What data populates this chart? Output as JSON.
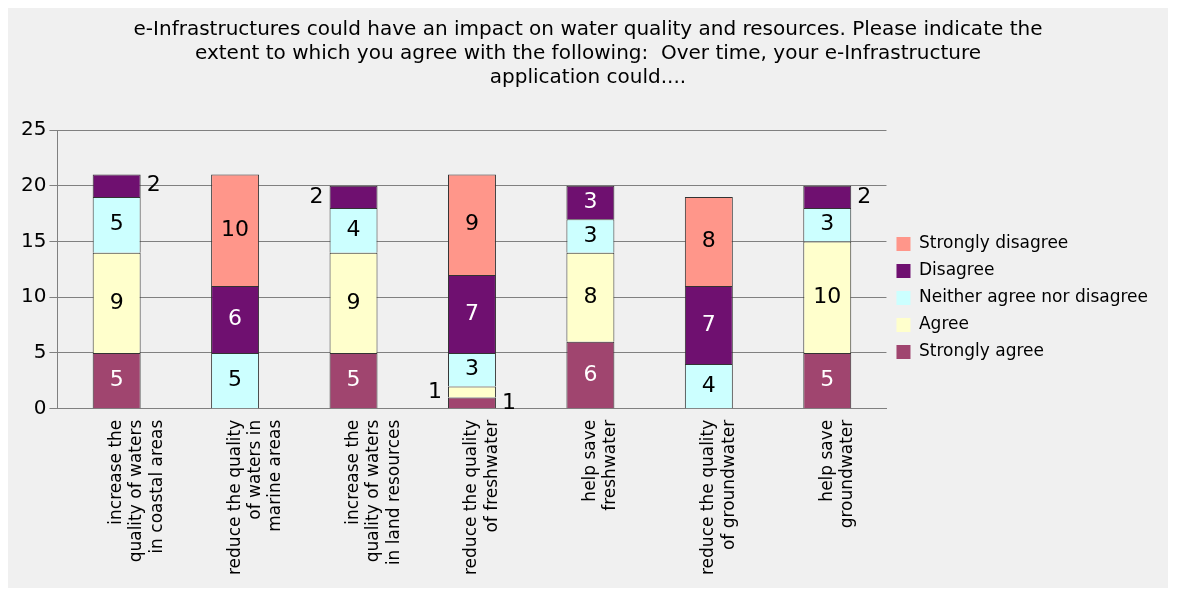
{
  "chart_data": {
    "type": "bar",
    "stacked": true,
    "title": "e-Infrastructures could have an impact on water quality and resources. Please indicate the extent to which you agree with the following:  Over time, your e-Infrastructure application could....",
    "categories": [
      "increase the quality of waters in coastal areas",
      "reduce the quality of waters in marine areas",
      "increase the quality of waters in land resources",
      "reduce the quality of freshwater",
      "help save freshwater",
      "reduce the quality of groundwater",
      "help save groundwater"
    ],
    "series": [
      {
        "name": "Strongly agree",
        "color": "#a0456f",
        "values": [
          5,
          null,
          5,
          1,
          6,
          null,
          5
        ]
      },
      {
        "name": "Agree",
        "color": "#ffffcc",
        "values": [
          9,
          null,
          9,
          1,
          8,
          null,
          10
        ]
      },
      {
        "name": "Neither agree nor disagree",
        "color": "#ccffff",
        "values": [
          5,
          5,
          4,
          3,
          3,
          4,
          3
        ]
      },
      {
        "name": "Disagree",
        "color": "#6f1070",
        "values": [
          2,
          6,
          2,
          7,
          3,
          7,
          2
        ]
      },
      {
        "name": "Strongly disagree",
        "color": "#ff968a",
        "values": [
          null,
          10,
          null,
          9,
          null,
          8,
          null
        ]
      }
    ],
    "ylim": [
      0,
      25
    ],
    "yticks": [
      0,
      5,
      10,
      15,
      20,
      25
    ],
    "grid": "y",
    "legend": "right",
    "data_labels": true
  }
}
